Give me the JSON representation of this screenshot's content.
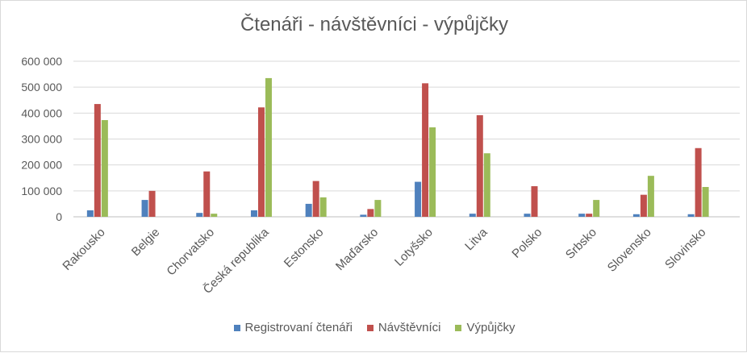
{
  "chart_data": {
    "type": "bar",
    "title": "Čtenáři - návštěvníci - výpůjčky",
    "xlabel": "",
    "ylabel": "",
    "ylim": [
      0,
      600000
    ],
    "yticks": [
      0,
      100000,
      200000,
      300000,
      400000,
      500000,
      600000
    ],
    "ytick_labels": [
      "0",
      "100 000",
      "200 000",
      "300 000",
      "400 000",
      "500 000",
      "600 000"
    ],
    "grid": true,
    "legend_position": "bottom",
    "categories": [
      "Rakousko",
      "Belgie",
      "Chorvatsko",
      "Česká republika",
      "Estonsko",
      "Maďarsko",
      "Lotyšsko",
      "Litva",
      "Polsko",
      "Srbsko",
      "Slovensko",
      "Slovinsko"
    ],
    "series": [
      {
        "name": "Registrovaní čtenáři",
        "color": "#4f81bd",
        "values": [
          25000,
          65000,
          15000,
          25000,
          50000,
          8000,
          135000,
          12000,
          12000,
          12000,
          10000,
          10000
        ]
      },
      {
        "name": "Návštěvníci",
        "color": "#c0504d",
        "values": [
          435000,
          100000,
          175000,
          422000,
          138000,
          30000,
          515000,
          392000,
          118000,
          12000,
          85000,
          265000
        ]
      },
      {
        "name": "Výpůjčky",
        "color": "#9bbb59",
        "values": [
          373000,
          0,
          12000,
          535000,
          75000,
          65000,
          345000,
          245000,
          0,
          65000,
          158000,
          115000
        ]
      }
    ]
  }
}
